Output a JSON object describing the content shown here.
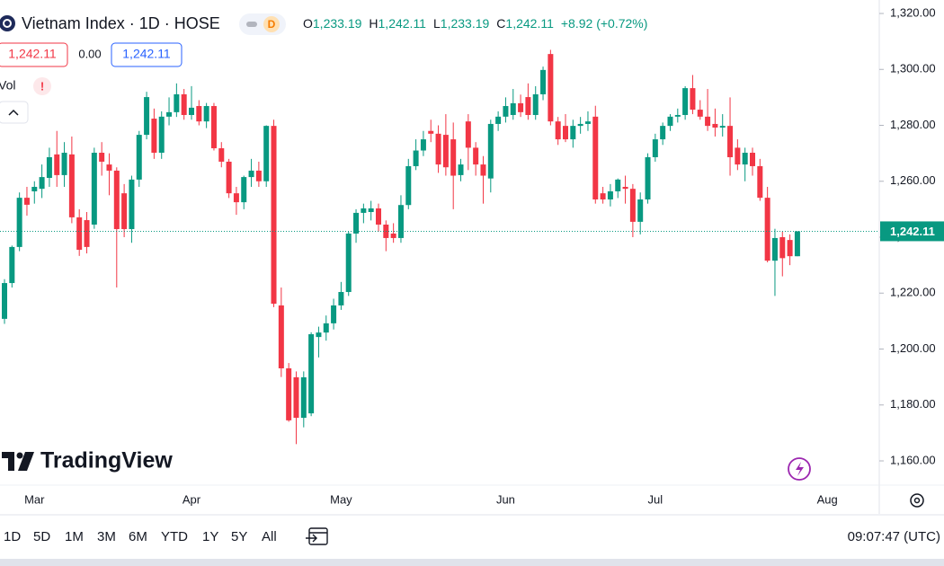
{
  "header": {
    "symbol": "Vietnam Index · 1D · HOSE",
    "badge": "D",
    "ohlc": [
      {
        "key": "O",
        "value": "1,233.19"
      },
      {
        "key": "H",
        "value": "1,242.11"
      },
      {
        "key": "L",
        "value": "1,233.19"
      },
      {
        "key": "C",
        "value": "1,242.11"
      }
    ],
    "change": "+8.92 (+0.72%)",
    "sell": "1,242.11",
    "spread": "0.00",
    "buy": "1,242.11",
    "volume_label": "Vol",
    "alert": "!"
  },
  "chart_data": {
    "type": "candlestick",
    "up_color": "#089981",
    "down_color": "#f23645",
    "grid": false,
    "categories": [
      null,
      null,
      null,
      null,
      "Mar",
      null,
      null,
      null,
      null,
      null,
      null,
      null,
      null,
      null,
      null,
      null,
      null,
      null,
      null,
      null,
      null,
      null,
      null,
      null,
      null,
      "Apr",
      null,
      null,
      null,
      null,
      null,
      null,
      null,
      null,
      null,
      null,
      null,
      null,
      null,
      null,
      null,
      null,
      null,
      null,
      null,
      "May",
      null,
      null,
      null,
      null,
      null,
      null,
      null,
      null,
      null,
      null,
      null,
      null,
      null,
      null,
      null,
      null,
      null,
      null,
      null,
      null,
      null,
      "Jun",
      null,
      null,
      null,
      null,
      null,
      null,
      null,
      null,
      null,
      null,
      null,
      null,
      null,
      null,
      null,
      null,
      null,
      null,
      null,
      "Jul",
      null,
      null,
      null,
      null,
      null,
      null,
      null,
      null,
      null,
      null,
      null,
      null,
      null,
      null,
      null,
      null,
      null,
      null,
      null,
      null,
      null,
      null,
      "Aug"
    ],
    "open": [
      1210.8,
      1223.6,
      1236.5,
      1254.1,
      1256.4,
      1257.3,
      1261.2,
      1269.6,
      1262.2,
      1269.6,
      1247.1,
      1246.1,
      1244.5,
      1270.2,
      1266,
      1263.8,
      1255.7,
      1242.9,
      1260.6,
      1276.6,
      1282.4,
      1270.2,
      1283.1,
      1284.7,
      1291.1,
      1283.7,
      1286.9,
      1281.4,
      1286.9,
      1271.8,
      1267,
      1255.7,
      1252.5,
      1261.5,
      1263.8,
      1260,
      1279.8,
      1215.6,
      1193.1,
      1189.9,
      1175.4,
      1177,
      1204.3,
      1205.9,
      1209.2,
      1215.6,
      1220.4,
      1241.3,
      1248.7,
      1249,
      1250.3,
      1244.5,
      1241.3,
      1239.7,
      1251.5,
      1265.4,
      1271,
      1278,
      1277,
      1276.6,
      1275,
      1262.2,
      1281.4,
      1272,
      1266,
      1261,
      1280.5,
      1283.1,
      1283.7,
      1287.9,
      1290.1,
      1283.7,
      1291.1,
      1305.5,
      1281.4,
      1279.8,
      1275,
      1279.8,
      1280.5,
      1283.1,
      1255.7,
      1253.5,
      1256.4,
      1258,
      1257.3,
      1245.5,
      1253.5,
      1268.6,
      1275,
      1279.8,
      1283.1,
      1283.7,
      1293.3,
      1285.6,
      1283.1,
      1280.5,
      1279.2,
      1279.8,
      1272,
      1266,
      1270.2,
      1265.4,
      1254.1,
      1231.6,
      1240,
      1239,
      1233.19,
      null,
      null,
      null,
      null
    ],
    "high": [
      1225,
      1237,
      1256,
      1258,
      1260,
      1266,
      1272,
      1278,
      1274,
      1276,
      1250,
      1249,
      1272,
      1274,
      1270,
      1265,
      1259,
      1262,
      1278,
      1292,
      1286,
      1285,
      1290,
      1295,
      1293,
      1294,
      1289,
      1288,
      1288,
      1274,
      1268,
      1258,
      1262,
      1268,
      1267,
      1280,
      1282,
      1222,
      1195,
      1192,
      1192,
      1206,
      1208,
      1212,
      1218,
      1224,
      1242,
      1250,
      1252,
      1253,
      1252,
      1246,
      1245,
      1255,
      1268,
      1275,
      1278,
      1282,
      1280,
      1284,
      1281,
      1268,
      1284,
      1274,
      1269,
      1282,
      1285,
      1290,
      1293,
      1291,
      1295,
      1294,
      1301,
      1307,
      1283,
      1284,
      1282,
      1283,
      1285,
      1287,
      1258,
      1259,
      1261,
      1262,
      1259,
      1256,
      1270,
      1277,
      1281,
      1284,
      1286,
      1294,
      1298,
      1289,
      1293,
      1286,
      1284,
      1290,
      1275,
      1272,
      1272,
      1268,
      1258,
      1243,
      1242,
      1241,
      1242.11,
      null,
      null,
      null,
      null
    ],
    "low": [
      1209,
      1222,
      1235,
      1247.7,
      1252,
      1254,
      1258,
      1258,
      1258,
      1245,
      1233.3,
      1234.2,
      1243,
      1262,
      1255,
      1222,
      1240,
      1238,
      1258,
      1275,
      1268,
      1268,
      1280,
      1283,
      1282,
      1282,
      1280,
      1279,
      1271,
      1265,
      1254,
      1248,
      1250,
      1258,
      1258,
      1258,
      1215,
      1190,
      1174,
      1166,
      1172,
      1176,
      1197,
      1203,
      1207,
      1214,
      1219,
      1238,
      1245,
      1246,
      1242,
      1235,
      1238,
      1238,
      1250,
      1264,
      1269,
      1274,
      1263,
      1262,
      1250,
      1260,
      1264,
      1262,
      1252,
      1256,
      1278,
      1281,
      1282,
      1283,
      1282,
      1282,
      1289,
      1280,
      1273,
      1274,
      1272,
      1277,
      1278,
      1252,
      1252,
      1251,
      1254,
      1252,
      1240,
      1241,
      1252,
      1267,
      1273,
      1278,
      1281,
      1282,
      1284,
      1282,
      1278,
      1276,
      1276,
      1262,
      1264,
      1260,
      1262,
      1253,
      1231,
      1219,
      1226,
      1230,
      1233.19,
      null,
      null,
      null,
      null
    ],
    "close": [
      1223.6,
      1236.5,
      1254.1,
      1251.6,
      1258,
      1261.5,
      1268.6,
      1262.2,
      1270.2,
      1247.1,
      1235.5,
      1236.5,
      1270.2,
      1267,
      1263.8,
      1242.9,
      1242.9,
      1260.6,
      1276.6,
      1290.1,
      1270.2,
      1283.1,
      1284.7,
      1291.1,
      1283.7,
      1286.3,
      1281.4,
      1286.9,
      1271.8,
      1267,
      1255.7,
      1252.5,
      1261.5,
      1263.8,
      1260,
      1279.8,
      1216.2,
      1193.1,
      1174.5,
      1175.4,
      1189.9,
      1205.3,
      1205.9,
      1209.2,
      1215.6,
      1220.4,
      1241.3,
      1248.7,
      1250.3,
      1250.3,
      1244.5,
      1239.7,
      1239.7,
      1251.5,
      1265.4,
      1271,
      1275,
      1277,
      1266,
      1265,
      1262,
      1266,
      1272,
      1266,
      1262,
      1280.5,
      1283.1,
      1286.9,
      1287.9,
      1284.7,
      1283.7,
      1291.1,
      1299.8,
      1281.4,
      1275,
      1275,
      1279.8,
      1280.5,
      1281.4,
      1253.5,
      1253.5,
      1256.4,
      1260.6,
      1257.3,
      1245.5,
      1253.5,
      1268.6,
      1275,
      1279.8,
      1283.1,
      1283.7,
      1293.3,
      1285.6,
      1283.1,
      1279.8,
      1279.2,
      1279.8,
      1268.6,
      1266,
      1270.2,
      1265.4,
      1254.1,
      1231.6,
      1239.7,
      1232.5,
      1233.2,
      1242.11,
      null,
      null,
      null,
      null
    ],
    "ylim": [
      1151.33,
      1324.82
    ],
    "yticks": [
      {
        "value": 1160,
        "label": "1,160.00"
      },
      {
        "value": 1180,
        "label": "1,180.00"
      },
      {
        "value": 1200,
        "label": "1,200.00"
      },
      {
        "value": 1220,
        "label": "1,220.00"
      },
      {
        "value": 1240,
        "label": "1,240.00"
      },
      {
        "value": 1260,
        "label": "1,260.00"
      },
      {
        "value": 1280,
        "label": "1,280.00"
      },
      {
        "value": 1300,
        "label": "1,300.00"
      },
      {
        "value": 1320,
        "label": "1,320.00"
      }
    ],
    "last_price": {
      "value": 1242.11,
      "label": "1,242.11"
    }
  },
  "branding": "TradingView",
  "toolbar": {
    "ranges": [
      "1D",
      "5D",
      "1M",
      "3M",
      "6M",
      "YTD",
      "1Y",
      "5Y",
      "All"
    ],
    "time": "09:07:47 (UTC)"
  }
}
